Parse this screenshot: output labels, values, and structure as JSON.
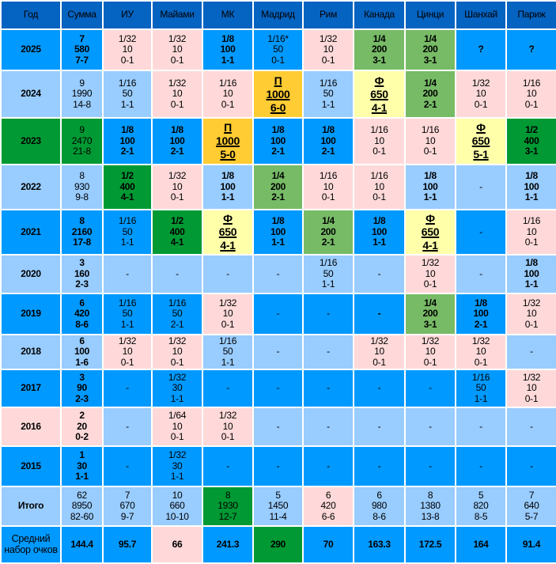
{
  "colors": {
    "header": "#0563c1",
    "B": "#0099ff",
    "L": "#99ccff",
    "P": "#ffd9d9",
    "G": "#77bb66",
    "D": "#009933",
    "O": "#ffcc33",
    "Y": "#ffffaa"
  },
  "headers": [
    "Год",
    "Сумма",
    "ИУ",
    "Майами",
    "МК",
    "Мадрид",
    "Рим",
    "Канада",
    "Цинци",
    "Шанхай",
    "Париж"
  ],
  "rows": [
    {
      "label": "2025",
      "bg": "B",
      "sum": {
        "v": [
          "7",
          "580",
          "7-7"
        ],
        "s": "B",
        "f": "b"
      },
      "cells": [
        {
          "v": [
            "1/32",
            "10",
            "0-1"
          ],
          "s": "P"
        },
        {
          "v": [
            "1/32",
            "10",
            "0-1"
          ],
          "s": "P"
        },
        {
          "v": [
            "1/8",
            "100",
            "1-1"
          ],
          "s": "B",
          "f": "b"
        },
        {
          "v": [
            "1/16*",
            "50",
            "0-1"
          ],
          "s": "B"
        },
        {
          "v": [
            "1/32",
            "10",
            "0-1"
          ],
          "s": "P"
        },
        {
          "v": [
            "1/4",
            "200",
            "3-1"
          ],
          "s": "G",
          "f": "b"
        },
        {
          "v": [
            "1/4",
            "200",
            "3-1"
          ],
          "s": "G",
          "f": "b"
        },
        {
          "v": [
            "?"
          ],
          "s": "B",
          "f": "b"
        },
        {
          "v": [
            "?"
          ],
          "s": "B",
          "f": "b"
        }
      ]
    },
    {
      "label": "2024",
      "bg": "L",
      "sum": {
        "v": [
          "9",
          "1990",
          "14-8"
        ],
        "s": "L"
      },
      "cells": [
        {
          "v": [
            "1/16",
            "50",
            "1-1"
          ],
          "s": "L"
        },
        {
          "v": [
            "1/32",
            "10",
            "0-1"
          ],
          "s": "P"
        },
        {
          "v": [
            "1/16",
            "10",
            "0-1"
          ],
          "s": "P"
        },
        {
          "v": [
            "П",
            "1000",
            "6-0"
          ],
          "s": "O",
          "f": "u"
        },
        {
          "v": [
            "1/16",
            "50",
            "1-1"
          ],
          "s": "L"
        },
        {
          "v": [
            "Ф",
            "650",
            "4-1"
          ],
          "s": "Y",
          "f": "u"
        },
        {
          "v": [
            "1/4",
            "200",
            "2-1"
          ],
          "s": "G",
          "f": "b"
        },
        {
          "v": [
            "1/32",
            "10",
            "0-1"
          ],
          "s": "P"
        },
        {
          "v": [
            "1/16",
            "10",
            "0-1"
          ],
          "s": "P"
        }
      ]
    },
    {
      "label": "2023",
      "bg": "D",
      "sum": {
        "v": [
          "9",
          "2470",
          "21-8"
        ],
        "s": "D"
      },
      "cells": [
        {
          "v": [
            "1/8",
            "100",
            "2-1"
          ],
          "s": "B",
          "f": "b"
        },
        {
          "v": [
            "1/8",
            "100",
            "2-1"
          ],
          "s": "B",
          "f": "b"
        },
        {
          "v": [
            "П",
            "1000",
            "5-0"
          ],
          "s": "O",
          "f": "u"
        },
        {
          "v": [
            "1/8",
            "100",
            "2-1"
          ],
          "s": "B",
          "f": "b"
        },
        {
          "v": [
            "1/8",
            "100",
            "2-1"
          ],
          "s": "B",
          "f": "b"
        },
        {
          "v": [
            "1/16",
            "10",
            "0-1"
          ],
          "s": "P"
        },
        {
          "v": [
            "1/16",
            "10",
            "0-1"
          ],
          "s": "P"
        },
        {
          "v": [
            "Ф",
            "650",
            "5-1"
          ],
          "s": "Y",
          "f": "u"
        },
        {
          "v": [
            "1/2",
            "400",
            "3-1"
          ],
          "s": "D",
          "f": "b"
        }
      ]
    },
    {
      "label": "2022",
      "bg": "L",
      "sum": {
        "v": [
          "8",
          "930",
          "9-8"
        ],
        "s": "L"
      },
      "cells": [
        {
          "v": [
            "1/2",
            "400",
            "4-1"
          ],
          "s": "D",
          "f": "b"
        },
        {
          "v": [
            "1/32",
            "10",
            "0-1"
          ],
          "s": "P"
        },
        {
          "v": [
            "1/8",
            "100",
            "1-1"
          ],
          "s": "L",
          "f": "b"
        },
        {
          "v": [
            "1/4",
            "200",
            "2-1"
          ],
          "s": "G",
          "f": "b"
        },
        {
          "v": [
            "1/16",
            "10",
            "0-1"
          ],
          "s": "P"
        },
        {
          "v": [
            "1/16",
            "10",
            "0-1"
          ],
          "s": "P"
        },
        {
          "v": [
            "1/8",
            "100",
            "1-1"
          ],
          "s": "L",
          "f": "b"
        },
        {
          "v": [
            "-"
          ],
          "s": "L"
        },
        {
          "v": [
            "1/8",
            "100",
            "1-1"
          ],
          "s": "L",
          "f": "b"
        }
      ]
    },
    {
      "label": "2021",
      "bg": "B",
      "sum": {
        "v": [
          "8",
          "2160",
          "17-8"
        ],
        "s": "B",
        "f": "b"
      },
      "cells": [
        {
          "v": [
            "1/16",
            "50",
            "1-1"
          ],
          "s": "B"
        },
        {
          "v": [
            "1/2",
            "400",
            "4-1"
          ],
          "s": "D",
          "f": "b"
        },
        {
          "v": [
            "Ф",
            "650",
            "4-1"
          ],
          "s": "Y",
          "f": "u"
        },
        {
          "v": [
            "1/8",
            "100",
            "1-1"
          ],
          "s": "B",
          "f": "b"
        },
        {
          "v": [
            "1/4",
            "200",
            "2-1"
          ],
          "s": "G",
          "f": "b"
        },
        {
          "v": [
            "1/8",
            "100",
            "1-1"
          ],
          "s": "B",
          "f": "b"
        },
        {
          "v": [
            "Ф",
            "650",
            "4-1"
          ],
          "s": "Y",
          "f": "u"
        },
        {
          "v": [
            "-"
          ],
          "s": "B"
        },
        {
          "v": [
            "1/16",
            "10",
            "0-1"
          ],
          "s": "P"
        }
      ]
    },
    {
      "label": "2020",
      "bg": "L",
      "sum": {
        "v": [
          "3",
          "160",
          "2-3"
        ],
        "s": "L",
        "f": "b"
      },
      "cells": [
        {
          "v": [
            "-"
          ],
          "s": "L"
        },
        {
          "v": [
            "-"
          ],
          "s": "L"
        },
        {
          "v": [
            "-"
          ],
          "s": "L"
        },
        {
          "v": [
            "-"
          ],
          "s": "L"
        },
        {
          "v": [
            "1/16",
            "50",
            "1-1"
          ],
          "s": "L"
        },
        {
          "v": [
            "-"
          ],
          "s": "L"
        },
        {
          "v": [
            "1/32",
            "10",
            "0-1"
          ],
          "s": "P"
        },
        {
          "v": [
            "-"
          ],
          "s": "L"
        },
        {
          "v": [
            "1/8",
            "100",
            "1-1"
          ],
          "s": "L",
          "f": "b"
        }
      ]
    },
    {
      "label": "2019",
      "bg": "B",
      "sum": {
        "v": [
          "6",
          "420",
          "8-6"
        ],
        "s": "B",
        "f": "b"
      },
      "cells": [
        {
          "v": [
            "1/16",
            "50",
            "1-1"
          ],
          "s": "B"
        },
        {
          "v": [
            "1/16",
            "50",
            "2-1"
          ],
          "s": "B"
        },
        {
          "v": [
            "1/32",
            "10",
            "0-1"
          ],
          "s": "P"
        },
        {
          "v": [
            "-"
          ],
          "s": "B"
        },
        {
          "v": [
            "-"
          ],
          "s": "B"
        },
        {
          "v": [
            "-"
          ],
          "s": "B",
          "f": "b"
        },
        {
          "v": [
            "1/4",
            "200",
            "3-1"
          ],
          "s": "G",
          "f": "b"
        },
        {
          "v": [
            "1/8",
            "100",
            "2-1"
          ],
          "s": "B",
          "f": "b"
        },
        {
          "v": [
            "1/32",
            "10",
            "0-1"
          ],
          "s": "P"
        }
      ]
    },
    {
      "label": "2018",
      "bg": "L",
      "sum": {
        "v": [
          "6",
          "100",
          "1-6"
        ],
        "s": "L",
        "f": "b"
      },
      "cells": [
        {
          "v": [
            "1/32",
            "10",
            "0-1"
          ],
          "s": "P"
        },
        {
          "v": [
            "1/32",
            "10",
            "0-1"
          ],
          "s": "P"
        },
        {
          "v": [
            "1/16",
            "50",
            "1-1"
          ],
          "s": "L"
        },
        {
          "v": [
            "-"
          ],
          "s": "L"
        },
        {
          "v": [
            "-"
          ],
          "s": "L"
        },
        {
          "v": [
            "1/32",
            "10",
            "0-1"
          ],
          "s": "P"
        },
        {
          "v": [
            "1/32",
            "10",
            "0-1"
          ],
          "s": "P"
        },
        {
          "v": [
            "1/32",
            "10",
            "0-1"
          ],
          "s": "P"
        },
        {
          "v": [
            "-"
          ],
          "s": "L"
        }
      ]
    },
    {
      "label": "2017",
      "bg": "B",
      "sum": {
        "v": [
          "3",
          "90",
          "2-3"
        ],
        "s": "B",
        "f": "b"
      },
      "cells": [
        {
          "v": [
            "-"
          ],
          "s": "B"
        },
        {
          "v": [
            "1/32",
            "30",
            "1-1"
          ],
          "s": "B"
        },
        {
          "v": [
            "-"
          ],
          "s": "B"
        },
        {
          "v": [
            "-"
          ],
          "s": "B"
        },
        {
          "v": [
            "-"
          ],
          "s": "B"
        },
        {
          "v": [
            "-"
          ],
          "s": "B"
        },
        {
          "v": [
            "-"
          ],
          "s": "B"
        },
        {
          "v": [
            "1/16",
            "50",
            "1-1"
          ],
          "s": "B"
        },
        {
          "v": [
            "1/32",
            "10",
            "0-1"
          ],
          "s": "P"
        }
      ]
    },
    {
      "label": "2016",
      "bg": "P",
      "sum": {
        "v": [
          "2",
          "20",
          "0-2"
        ],
        "s": "P",
        "f": "b"
      },
      "cells": [
        {
          "v": [
            "-"
          ],
          "s": "L"
        },
        {
          "v": [
            "1/64",
            "10",
            "0-1"
          ],
          "s": "P"
        },
        {
          "v": [
            "1/32",
            "10",
            "0-1"
          ],
          "s": "P"
        },
        {
          "v": [
            "-"
          ],
          "s": "L"
        },
        {
          "v": [
            "-"
          ],
          "s": "L"
        },
        {
          "v": [
            "-"
          ],
          "s": "L"
        },
        {
          "v": [
            "-"
          ],
          "s": "L"
        },
        {
          "v": [
            "-"
          ],
          "s": "L"
        },
        {
          "v": [
            "-"
          ],
          "s": "L"
        }
      ]
    },
    {
      "label": "2015",
      "bg": "B",
      "sum": {
        "v": [
          "1",
          "30",
          "1-1"
        ],
        "s": "B",
        "f": "b"
      },
      "cells": [
        {
          "v": [
            "-"
          ],
          "s": "B"
        },
        {
          "v": [
            "1/32",
            "30",
            "1-1"
          ],
          "s": "B"
        },
        {
          "v": [
            "-"
          ],
          "s": "B"
        },
        {
          "v": [
            "-"
          ],
          "s": "B"
        },
        {
          "v": [
            "-"
          ],
          "s": "B"
        },
        {
          "v": [
            "-"
          ],
          "s": "B"
        },
        {
          "v": [
            "-"
          ],
          "s": "B"
        },
        {
          "v": [
            "-"
          ],
          "s": "B"
        },
        {
          "v": [
            "-"
          ],
          "s": "B"
        }
      ]
    },
    {
      "label": "Итого",
      "bg": "L",
      "sum": {
        "v": [
          "62",
          "8950",
          "82-60"
        ],
        "s": "L"
      },
      "cells": [
        {
          "v": [
            "7",
            "670",
            "9-7"
          ],
          "s": "L"
        },
        {
          "v": [
            "10",
            "660",
            "10-10"
          ],
          "s": "L"
        },
        {
          "v": [
            "8",
            "1930",
            "12-7"
          ],
          "s": "D"
        },
        {
          "v": [
            "5",
            "1450",
            "11-4"
          ],
          "s": "L"
        },
        {
          "v": [
            "6",
            "420",
            "6-6"
          ],
          "s": "P"
        },
        {
          "v": [
            "6",
            "980",
            "8-6"
          ],
          "s": "L"
        },
        {
          "v": [
            "8",
            "1380",
            "13-8"
          ],
          "s": "L"
        },
        {
          "v": [
            "5",
            "820",
            "8-5"
          ],
          "s": "L"
        },
        {
          "v": [
            "7",
            "640",
            "5-7"
          ],
          "s": "L"
        }
      ]
    },
    {
      "label": "Средний набор очков",
      "bg": "B",
      "sum": {
        "v": [
          "144.4"
        ],
        "s": "B",
        "f": "b"
      },
      "cells": [
        {
          "v": [
            "95.7"
          ],
          "s": "B",
          "f": "b"
        },
        {
          "v": [
            "66"
          ],
          "s": "P",
          "f": "b"
        },
        {
          "v": [
            "241.3"
          ],
          "s": "B",
          "f": "b"
        },
        {
          "v": [
            "290"
          ],
          "s": "D",
          "f": "b"
        },
        {
          "v": [
            "70"
          ],
          "s": "B",
          "f": "b"
        },
        {
          "v": [
            "163.3"
          ],
          "s": "B",
          "f": "b"
        },
        {
          "v": [
            "172.5"
          ],
          "s": "B",
          "f": "b"
        },
        {
          "v": [
            "164"
          ],
          "s": "B",
          "f": "b"
        },
        {
          "v": [
            "91.4"
          ],
          "s": "B",
          "f": "b"
        }
      ]
    }
  ]
}
